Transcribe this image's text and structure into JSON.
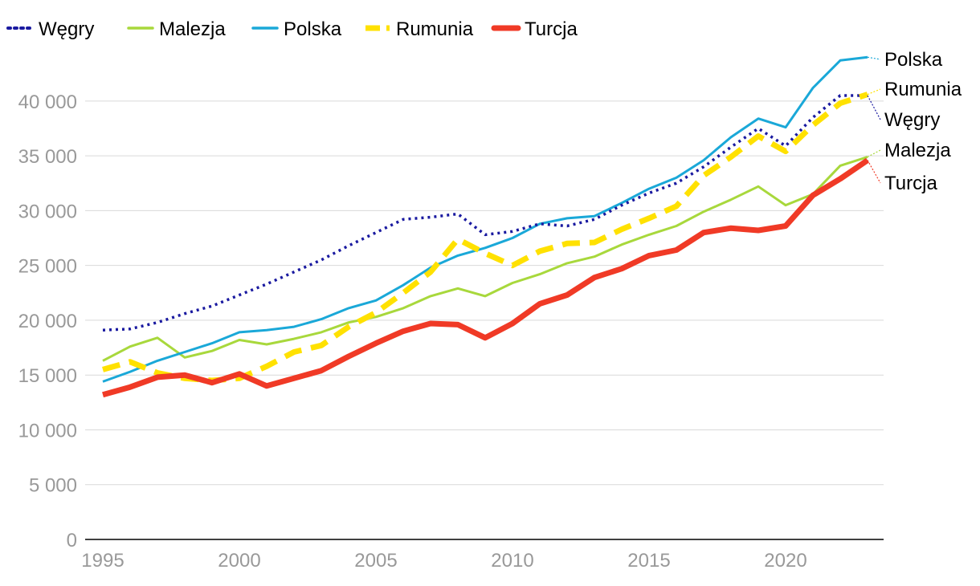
{
  "chart_data": {
    "type": "line",
    "title": "",
    "xlabel": "",
    "ylabel": "",
    "ylim": [
      0,
      42000
    ],
    "xlim": [
      1995,
      2023
    ],
    "grid": true,
    "legend_position": "top-left",
    "x_ticks": [
      1995,
      2000,
      2005,
      2010,
      2015,
      2020
    ],
    "x_tick_labels": [
      "1995",
      "2000",
      "2005",
      "2010",
      "2015",
      "2020"
    ],
    "y_ticks": [
      0,
      5000,
      10000,
      15000,
      20000,
      25000,
      30000,
      35000,
      40000
    ],
    "y_tick_labels": [
      "0",
      "5 000",
      "10 000",
      "15 000",
      "20 000",
      "25 000",
      "30 000",
      "35 000",
      "40 000"
    ],
    "x": [
      1995,
      1996,
      1997,
      1998,
      1999,
      2000,
      2001,
      2002,
      2003,
      2004,
      2005,
      2006,
      2007,
      2008,
      2009,
      2010,
      2011,
      2012,
      2013,
      2014,
      2015,
      2016,
      2017,
      2018,
      2019,
      2020,
      2021,
      2022,
      2023
    ],
    "series": [
      {
        "name": "Węgry",
        "end_label": "Węgry",
        "color": "#1a1aa0",
        "style": "dotted",
        "values": [
          19100,
          19200,
          19800,
          20600,
          21300,
          22300,
          23300,
          24400,
          25500,
          26800,
          28000,
          29200,
          29400,
          29700,
          27800,
          28100,
          28800,
          28600,
          29200,
          30500,
          31600,
          32500,
          34000,
          35800,
          37500,
          35900,
          38500,
          40500,
          40500
        ]
      },
      {
        "name": "Malezja",
        "end_label": "Malezja",
        "color": "#a8d83c",
        "style": "solid",
        "values": [
          16300,
          17600,
          18400,
          16600,
          17200,
          18200,
          17800,
          18300,
          18900,
          19800,
          20300,
          21100,
          22200,
          22900,
          22200,
          23400,
          24200,
          25200,
          25800,
          26900,
          27800,
          28600,
          29900,
          31000,
          32200,
          30500,
          31500,
          34100,
          34900
        ]
      },
      {
        "name": "Polska",
        "end_label": "Polska",
        "color": "#1aa8d8",
        "style": "solid",
        "values": [
          14400,
          15300,
          16300,
          17100,
          17900,
          18900,
          19100,
          19400,
          20100,
          21100,
          21800,
          23200,
          24800,
          25900,
          26600,
          27500,
          28800,
          29300,
          29500,
          30700,
          32000,
          33000,
          34600,
          36700,
          38400,
          37600,
          41200,
          43700,
          44000
        ]
      },
      {
        "name": "Rumunia",
        "end_label": "Rumunia",
        "color": "#ffe100",
        "style": "dashed",
        "values": [
          15500,
          16200,
          15200,
          14700,
          14500,
          14700,
          15800,
          17100,
          17700,
          19400,
          20700,
          22500,
          24400,
          27400,
          26100,
          25000,
          26300,
          27000,
          27100,
          28300,
          29300,
          30400,
          33200,
          34900,
          36800,
          35400,
          37800,
          39800,
          40600
        ]
      },
      {
        "name": "Turcja",
        "end_label": "Turcja",
        "color": "#f03a26",
        "style": "thick",
        "values": [
          13200,
          13900,
          14800,
          15000,
          14300,
          15100,
          14000,
          14700,
          15400,
          16700,
          17900,
          19000,
          19700,
          19600,
          18400,
          19700,
          21500,
          22300,
          23900,
          24700,
          25900,
          26400,
          28000,
          28400,
          28200,
          28600,
          31400,
          32900,
          34600
        ]
      }
    ]
  }
}
